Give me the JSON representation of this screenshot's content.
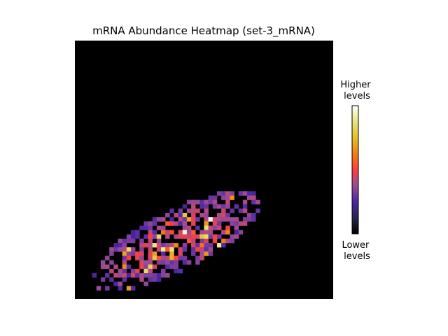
{
  "chart_data": {
    "type": "heatmap",
    "title": "mRNA Abundance Heatmap (set-3_mRNA)",
    "xlabel": "",
    "ylabel": "",
    "grid_size": [
      60,
      60
    ],
    "background_value": 0,
    "colormap": "CMRmap",
    "colorbar": {
      "top_label": "Higher\nlevels",
      "bottom_label": "Lower\nlevels"
    },
    "blob": {
      "center_col": 23,
      "center_row": 46,
      "semi_axis_cols": 22,
      "semi_axis_rows": 7,
      "angle_deg": -27,
      "fill_fraction": 0.75,
      "seed": 7
    },
    "peak_cells": [
      {
        "col": 31,
        "row": 41,
        "value": 1.0
      },
      {
        "col": 25,
        "row": 44,
        "value": 0.95
      },
      {
        "col": 20,
        "row": 48,
        "value": 0.9
      },
      {
        "col": 33,
        "row": 47,
        "value": 0.9
      },
      {
        "col": 30,
        "row": 45,
        "value": 0.85
      }
    ]
  }
}
